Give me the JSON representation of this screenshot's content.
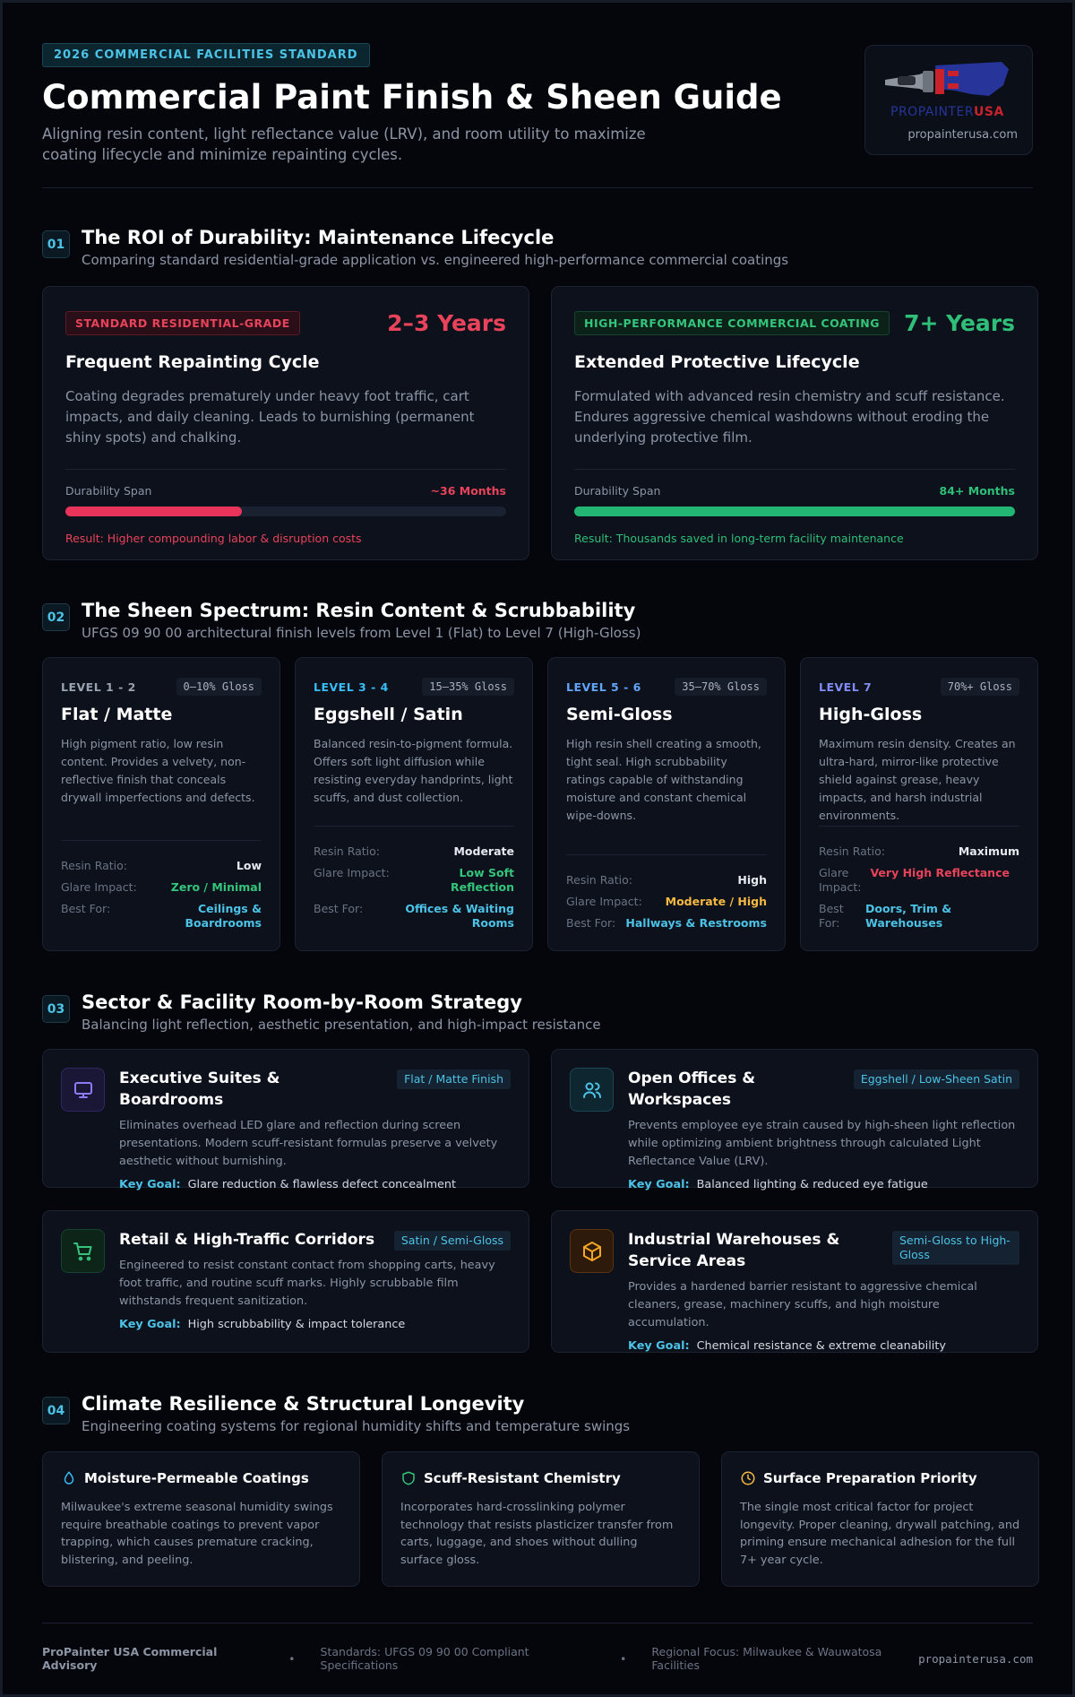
{
  "header": {
    "badge": "2026 COMMERCIAL FACILITIES STANDARD",
    "title": "Commercial Paint Finish & Sheen Guide",
    "subtitle": "Aligning resin content, light reflectance value (LRV), and room utility to maximize coating lifecycle and minimize repainting cycles.",
    "logo": {
      "brand_left": "PROPAINTER",
      "brand_right": "USA",
      "url": "propainterusa.com"
    }
  },
  "lifecycle": {
    "number": "01",
    "title": "The ROI of Durability: Maintenance Lifecycle",
    "subtitle": "Comparing standard residential-grade application vs. engineered high-performance commercial coatings",
    "cards": [
      {
        "tag": "STANDARD RESIDENTIAL-GRADE",
        "stat": "2–3 Years",
        "heading": "Frequent Repainting Cycle",
        "body": "Coating degrades prematurely under heavy foot traffic, cart impacts, and daily cleaning. Leads to burnishing (permanent shiny spots) and chalking.",
        "meter_label": "Durability Span",
        "meter_value": "~36 Months",
        "result": "Result: Higher compounding labor & disruption costs"
      },
      {
        "tag": "HIGH-PERFORMANCE COMMERCIAL COATING",
        "stat": "7+ Years",
        "heading": "Extended Protective Lifecycle",
        "body": "Formulated with advanced resin chemistry and scuff resistance. Endures aggressive chemical washdowns without eroding the underlying protective film.",
        "meter_label": "Durability Span",
        "meter_value": "84+ Months",
        "result": "Result: Thousands saved in long-term facility maintenance"
      }
    ]
  },
  "sheen": {
    "number": "02",
    "title": "The Sheen Spectrum: Resin Content & Scrubbability",
    "subtitle": "UFGS 09 90 00 architectural finish levels from Level 1 (Flat) to Level 7 (High-Gloss)",
    "cards": [
      {
        "level": "LEVEL 1 - 2",
        "gloss": "0–10% Gloss",
        "name": "Flat / Matte",
        "body": "High pigment ratio, low resin content. Provides a velvety, non-reflective finish that conceals drywall imperfections and defects.",
        "specs": [
          {
            "label": "Resin Ratio:",
            "value": "Low"
          },
          {
            "label": "Glare Impact:",
            "value": "Zero / Minimal"
          },
          {
            "label": "Best For:",
            "value": "Ceilings & Boardrooms"
          }
        ]
      },
      {
        "level": "LEVEL 3 - 4",
        "gloss": "15–35% Gloss",
        "name": "Eggshell / Satin",
        "body": "Balanced resin-to-pigment formula. Offers soft light diffusion while resisting everyday handprints, light scuffs, and dust collection.",
        "specs": [
          {
            "label": "Resin Ratio:",
            "value": "Moderate"
          },
          {
            "label": "Glare Impact:",
            "value": "Low Soft Reflection"
          },
          {
            "label": "Best For:",
            "value": "Offices & Waiting Rooms"
          }
        ]
      },
      {
        "level": "LEVEL 5 - 6",
        "gloss": "35–70% Gloss",
        "name": "Semi-Gloss",
        "body": "High resin shell creating a smooth, tight seal. High scrubbability ratings capable of withstanding moisture and constant chemical wipe-downs.",
        "specs": [
          {
            "label": "Resin Ratio:",
            "value": "High"
          },
          {
            "label": "Glare Impact:",
            "value": "Moderate / High"
          },
          {
            "label": "Best For:",
            "value": "Hallways & Restrooms"
          }
        ]
      },
      {
        "level": "LEVEL 7",
        "gloss": "70%+ Gloss",
        "name": "High-Gloss",
        "body": "Maximum resin density. Creates an ultra-hard, mirror-like protective shield against grease, heavy impacts, and harsh industrial environments.",
        "specs": [
          {
            "label": "Resin Ratio:",
            "value": "Maximum"
          },
          {
            "label": "Glare Impact:",
            "value": "Very High Reflectance"
          },
          {
            "label": "Best For:",
            "value": "Doors, Trim & Warehouses"
          }
        ]
      }
    ]
  },
  "rooms": {
    "number": "03",
    "title": "Sector & Facility Room-by-Room Strategy",
    "subtitle": "Balancing light reflection, aesthetic presentation, and high-impact resistance",
    "cards": [
      {
        "title": "Executive Suites & Boardrooms",
        "finish": "Flat / Matte Finish",
        "body": "Eliminates overhead LED glare and reflection during screen presentations. Modern scuff-resistant formulas preserve a velvety aesthetic without burnishing.",
        "goal_label": "Key Goal:",
        "goal": "Glare reduction & flawless defect concealment"
      },
      {
        "title": "Open Offices & Workspaces",
        "finish": "Eggshell / Low-Sheen Satin",
        "body": "Prevents employee eye strain caused by high-sheen light reflection while optimizing ambient brightness through calculated Light Reflectance Value (LRV).",
        "goal_label": "Key Goal:",
        "goal": "Balanced lighting & reduced eye fatigue"
      },
      {
        "title": "Retail & High-Traffic Corridors",
        "finish": "Satin / Semi-Gloss",
        "body": "Engineered to resist constant contact from shopping carts, heavy foot traffic, and routine scuff marks. Highly scrubbable film withstands frequent sanitization.",
        "goal_label": "Key Goal:",
        "goal": "High scrubbability & impact tolerance"
      },
      {
        "title": "Industrial Warehouses & Service Areas",
        "finish": "Semi-Gloss to High-Gloss",
        "body": "Provides a hardened barrier resistant to aggressive chemical cleaners, grease, machinery scuffs, and high moisture accumulation.",
        "goal_label": "Key Goal:",
        "goal": "Chemical resistance & extreme cleanability"
      }
    ]
  },
  "climate": {
    "number": "04",
    "title": "Climate Resilience & Structural Longevity",
    "subtitle": "Engineering coating systems for regional humidity shifts and temperature swings",
    "cards": [
      {
        "title": "Moisture-Permeable Coatings",
        "body": "Milwaukee's extreme seasonal humidity swings require breathable coatings to prevent vapor trapping, which causes premature cracking, blistering, and peeling."
      },
      {
        "title": "Scuff-Resistant Chemistry",
        "body": "Incorporates hard-crosslinking polymer technology that resists plasticizer transfer from carts, luggage, and shoes without dulling surface gloss."
      },
      {
        "title": "Surface Preparation Priority",
        "body": "The single most critical factor for project longevity. Proper cleaning, drywall patching, and priming ensure mechanical adhesion for the full 7+ year cycle."
      }
    ]
  },
  "footer": {
    "org": "ProPainter USA Commercial Advisory",
    "standards": "Standards: UFGS 09 90 00 Compliant Specifications",
    "region": "Regional Focus: Milwaukee & Wauwatosa Facilities",
    "url": "propainterusa.com"
  }
}
